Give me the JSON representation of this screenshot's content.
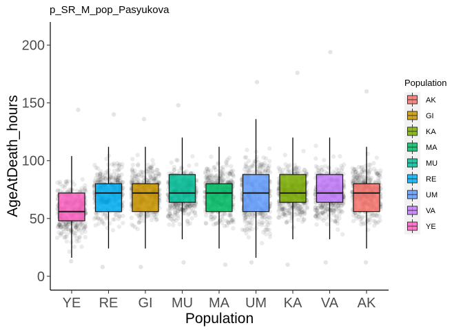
{
  "title": "p_SR_M_pop_Pasyukova",
  "chart_data": {
    "type": "boxplot",
    "title": "p_SR_M_pop_Pasyukova",
    "xlabel": "Population",
    "ylabel": "AgeAtDeath_hours",
    "ylim": [
      -12,
      220
    ],
    "yticks": [
      0,
      50,
      100,
      150,
      200
    ],
    "categories": [
      "YE",
      "RE",
      "GI",
      "MU",
      "MA",
      "UM",
      "KA",
      "VA",
      "AK"
    ],
    "boxes": [
      {
        "name": "YE",
        "color": "#FF61C3",
        "q1": 48,
        "median": 56,
        "q3": 72,
        "whisker_low": 16,
        "whisker_high": 104,
        "point_min": 13,
        "point_max": 144
      },
      {
        "name": "RE",
        "color": "#00B0F6",
        "q1": 56,
        "median": 72,
        "q3": 80,
        "whisker_low": 24,
        "whisker_high": 112,
        "point_min": 8,
        "point_max": 140
      },
      {
        "name": "GI",
        "color": "#CD9600",
        "q1": 56,
        "median": 72,
        "q3": 80,
        "whisker_low": 24,
        "whisker_high": 112,
        "point_min": 8,
        "point_max": 136
      },
      {
        "name": "MU",
        "color": "#00C19A",
        "q1": 64,
        "median": 72,
        "q3": 88,
        "whisker_low": 32,
        "whisker_high": 120,
        "point_min": 12,
        "point_max": 148
      },
      {
        "name": "MA",
        "color": "#00BE67",
        "q1": 56,
        "median": 72,
        "q3": 80,
        "whisker_low": 24,
        "whisker_high": 112,
        "point_min": 10,
        "point_max": 140
      },
      {
        "name": "UM",
        "color": "#619CFF",
        "q1": 56,
        "median": 72,
        "q3": 88,
        "whisker_low": 16,
        "whisker_high": 136,
        "point_min": 12,
        "point_max": 168
      },
      {
        "name": "KA",
        "color": "#7CAE00",
        "q1": 64,
        "median": 72,
        "q3": 88,
        "whisker_low": 32,
        "whisker_high": 120,
        "point_min": 10,
        "point_max": 176
      },
      {
        "name": "VA",
        "color": "#C77CFF",
        "q1": 64,
        "median": 72,
        "q3": 88,
        "whisker_low": 32,
        "whisker_high": 120,
        "point_min": 12,
        "point_max": 194
      },
      {
        "name": "AK",
        "color": "#F8766D",
        "q1": 56,
        "median": 72,
        "q3": 80,
        "whisker_low": 24,
        "whisker_high": 112,
        "point_min": 12,
        "point_max": 160
      }
    ],
    "jitter_points": {
      "color": "#000000",
      "alpha": 0.08,
      "per_group": 420
    },
    "legend": {
      "title": "Population",
      "position": "right",
      "entries": [
        {
          "label": "AK",
          "color": "#F8766D"
        },
        {
          "label": "GI",
          "color": "#CD9600"
        },
        {
          "label": "KA",
          "color": "#7CAE00"
        },
        {
          "label": "MA",
          "color": "#00BE67"
        },
        {
          "label": "MU",
          "color": "#00C19A"
        },
        {
          "label": "RE",
          "color": "#00B0F6"
        },
        {
          "label": "UM",
          "color": "#619CFF"
        },
        {
          "label": "VA",
          "color": "#C77CFF"
        },
        {
          "label": "YE",
          "color": "#FF61C3"
        }
      ]
    },
    "grid": false
  }
}
